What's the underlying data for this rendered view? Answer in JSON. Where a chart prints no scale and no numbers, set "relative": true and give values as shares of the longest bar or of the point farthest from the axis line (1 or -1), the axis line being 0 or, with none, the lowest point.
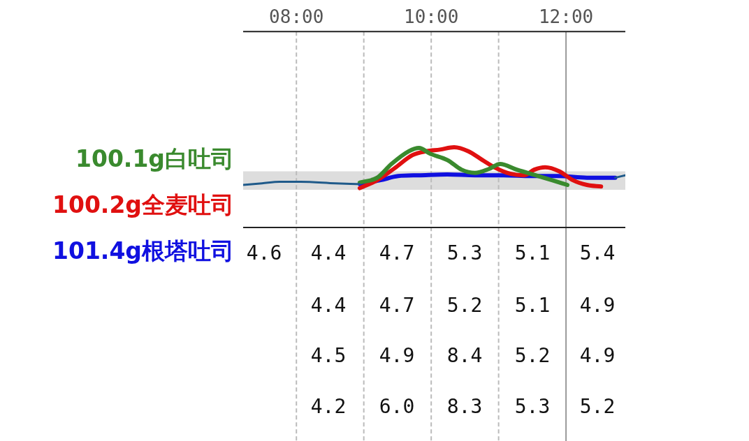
{
  "chart_data": {
    "type": "line",
    "relative": true,
    "xlim": [
      7.21,
      12.88
    ],
    "xticks": [
      {
        "value": 8,
        "label": "08:00"
      },
      {
        "value": 10,
        "label": "10:00"
      },
      {
        "value": 12,
        "label": "12:00"
      }
    ],
    "tick_labels": "x",
    "grid": false,
    "legend": "left",
    "marker": "none",
    "series": [
      {
        "color": "#1f5a8a",
        "x": [
          7.21,
          7.49,
          7.75,
          8.06,
          8.58,
          8.94,
          9.5,
          12.73,
          12.88
        ],
        "values": [
          0.53,
          0.55,
          0.57,
          0.57,
          0.55,
          0.54,
          null,
          0.62,
          0.65
        ]
      },
      {
        "name": "100.1g白吐司",
        "color": "#3a8a2e",
        "x": [
          8.94,
          9.2,
          9.41,
          9.67,
          9.82,
          9.98,
          10.24,
          10.45,
          10.65,
          10.86,
          11.02,
          11.27,
          11.59,
          11.79,
          12.02
        ],
        "values": [
          0.56,
          0.62,
          0.79,
          0.95,
          0.99,
          0.92,
          0.84,
          0.72,
          0.68,
          0.73,
          0.79,
          0.72,
          0.64,
          0.59,
          0.53
        ]
      },
      {
        "name": "100.2g全麦吐司",
        "color": "#e01010",
        "x": [
          8.94,
          9.2,
          9.46,
          9.72,
          9.93,
          10.13,
          10.34,
          10.55,
          10.76,
          10.96,
          11.17,
          11.38,
          11.53,
          11.69,
          11.9,
          12.1,
          12.31,
          12.52
        ],
        "values": [
          0.49,
          0.59,
          0.74,
          0.9,
          0.95,
          0.97,
          1,
          0.95,
          0.84,
          0.74,
          0.67,
          0.65,
          0.72,
          0.75,
          0.7,
          0.59,
          0.53,
          0.51
        ]
      },
      {
        "name": "101.4g根塔吐司",
        "color": "#1010e0",
        "x": [
          8.94,
          9.25,
          9.51,
          9.82,
          10.24,
          10.65,
          11.07,
          11.48,
          11.9,
          12.31,
          12.73
        ],
        "values": [
          0.54,
          0.59,
          0.64,
          0.65,
          0.66,
          0.65,
          0.65,
          0.64,
          0.64,
          0.62,
          0.62
        ]
      }
    ],
    "bands": [
      {
        "axis": "y",
        "from": 0.47,
        "to": 0.7,
        "color": "#dddddd"
      }
    ],
    "ref_lines": [
      {
        "axis": "x",
        "value": 8,
        "line_style": "dashed",
        "color": "#bbbbbb"
      },
      {
        "axis": "x",
        "value": 9,
        "line_style": "dashed",
        "color": "#bbbbbb"
      },
      {
        "axis": "x",
        "value": 10,
        "line_style": "dashed",
        "color": "#bbbbbb"
      },
      {
        "axis": "x",
        "value": 11,
        "line_style": "dashed",
        "color": "#bbbbbb"
      },
      {
        "axis": "x",
        "value": 12,
        "line_style": "solid",
        "color": "#999999"
      }
    ],
    "annotations": [
      "4.6",
      "4.4",
      "4.7",
      "5.3",
      "5.1",
      "5.4",
      "4.4",
      "4.7",
      "5.2",
      "5.1",
      "4.9",
      "4.5",
      "4.9",
      "8.4",
      "5.2",
      "4.9",
      "4.2",
      "6.0",
      "8.3",
      "5.3",
      "5.2"
    ]
  }
}
